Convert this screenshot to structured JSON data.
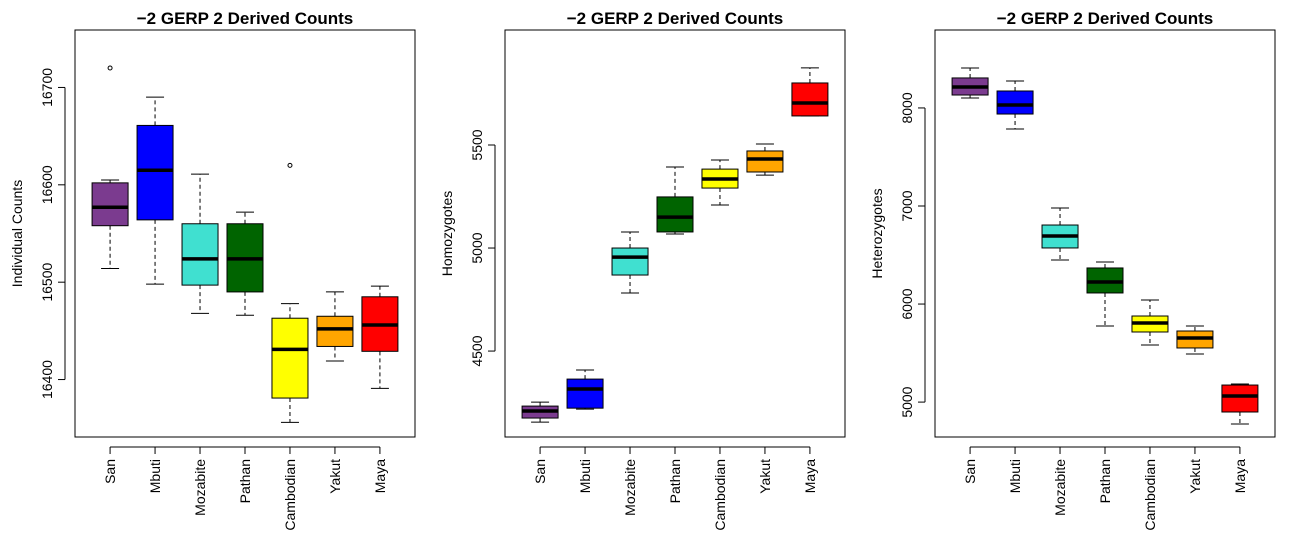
{
  "chart_data": [
    {
      "type": "box",
      "title": "−2 GERP 2 Derived Counts",
      "ylabel": "Individual Counts",
      "categories": [
        "San",
        "Mbuti",
        "Mozabite",
        "Pathan",
        "Cambodian",
        "Yakut",
        "Maya"
      ],
      "colors": [
        "#7b3b8f",
        "#0000ff",
        "#40e0d0",
        "#006400",
        "#ffff00",
        "#ffa500",
        "#ff0000"
      ],
      "min": [
        16514,
        16498,
        16468,
        16466,
        16356,
        16419,
        16391
      ],
      "q1": [
        16558,
        16564,
        16497,
        16490,
        16381,
        16434,
        16429
      ],
      "median": [
        16577,
        16615,
        16524,
        16524,
        16431,
        16452,
        16456
      ],
      "q3": [
        16602,
        16661,
        16560,
        16560,
        16463,
        16465,
        16485
      ],
      "max": [
        16605,
        16690,
        16611,
        16572,
        16478,
        16490,
        16496
      ],
      "outliers": [
        [
          16720
        ],
        [],
        [],
        [],
        [
          16620
        ],
        [],
        []
      ],
      "ylim": [
        16341,
        16759
      ],
      "yticks": [
        16400,
        16500,
        16600,
        16700
      ]
    },
    {
      "type": "box",
      "title": "−2 GERP 2 Derived Counts",
      "ylabel": "Homozygotes",
      "categories": [
        "San",
        "Mbuti",
        "Mozabite",
        "Pathan",
        "Cambodian",
        "Yakut",
        "Maya"
      ],
      "colors": [
        "#7b3b8f",
        "#0000ff",
        "#40e0d0",
        "#006400",
        "#ffff00",
        "#ffa500",
        "#ff0000"
      ],
      "min": [
        4155,
        4218,
        4782,
        5068,
        5209,
        5354,
        5641
      ],
      "q1": [
        4175,
        4223,
        4869,
        5078,
        5291,
        5369,
        5641
      ],
      "median": [
        4209,
        4316,
        4956,
        5150,
        5335,
        5432,
        5704
      ],
      "q3": [
        4233,
        4364,
        5000,
        5248,
        5383,
        5471,
        5801
      ],
      "max": [
        4252,
        4408,
        5078,
        5393,
        5427,
        5505,
        5874
      ],
      "outliers": [
        [],
        [],
        [],
        [],
        [],
        [],
        []
      ],
      "ylim": [
        4083,
        6058
      ],
      "yticks": [
        4500,
        5000,
        5500
      ]
    },
    {
      "type": "box",
      "title": "−2 GERP 2 Derived Counts",
      "ylabel": "Heterozygotes",
      "categories": [
        "San",
        "Mbuti",
        "Mozabite",
        "Pathan",
        "Cambodian",
        "Yakut",
        "Maya"
      ],
      "colors": [
        "#7b3b8f",
        "#0000ff",
        "#40e0d0",
        "#006400",
        "#ffff00",
        "#ffa500",
        "#ff0000"
      ],
      "min": [
        8102,
        7785,
        6449,
        5776,
        5582,
        5490,
        4776
      ],
      "q1": [
        8132,
        7938,
        6572,
        6113,
        5715,
        5552,
        4899
      ],
      "median": [
        8214,
        8030,
        6694,
        6225,
        5807,
        5654,
        5062
      ],
      "q3": [
        8306,
        8173,
        6806,
        6368,
        5878,
        5725,
        5174
      ],
      "max": [
        8408,
        8275,
        6980,
        6429,
        6041,
        5776,
        5184
      ],
      "outliers": [
        [],
        [],
        [],
        [],
        [],
        [],
        []
      ],
      "ylim": [
        4644,
        8795
      ],
      "yticks": [
        5000,
        6000,
        7000,
        8000
      ]
    }
  ]
}
